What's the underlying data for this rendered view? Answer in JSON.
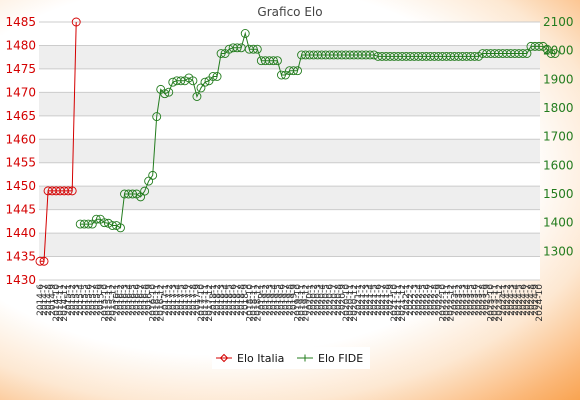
{
  "chart_data": {
    "type": "line",
    "title": "Grafico Elo",
    "left_axis": {
      "ylim": [
        1430,
        1485
      ],
      "ticks": [
        1430,
        1435,
        1440,
        1445,
        1450,
        1455,
        1460,
        1465,
        1470,
        1475,
        1480,
        1485
      ],
      "color": "#d40000"
    },
    "right_axis": {
      "ylim": [
        1200,
        2100
      ],
      "ticks": [
        1300,
        1400,
        1500,
        1600,
        1700,
        1800,
        1900,
        2000,
        2100
      ],
      "color": "#237c1e"
    },
    "grid": true,
    "legend_position": "bottom-center",
    "x_count": 125,
    "xtick_labels": [
      "2014-6",
      "2014-7",
      "2014-8",
      "2014-9",
      "2014-10",
      "2014-11",
      "2014-12",
      "2015-1",
      "2015-2",
      "2015-3",
      "2015-4",
      "2015-5",
      "2015-6",
      "2015-7",
      "2015-8",
      "2015-9",
      "2015-10",
      "2015-11",
      "2015-12",
      "2016-1",
      "2016-2",
      "2016-3",
      "2016-4",
      "2016-5",
      "2016-6",
      "2016-7",
      "2016-8",
      "2016-9",
      "2016-10",
      "2016-11",
      "2016-12",
      "2017-1",
      "2017-2",
      "2017-3",
      "2017-4",
      "2017-5",
      "2017-6",
      "2017-7",
      "2017-8",
      "2017-9",
      "2017-10",
      "2017-11",
      "2017-12",
      "2018-1",
      "2018-2",
      "2018-3",
      "2018-4",
      "2018-5",
      "2018-6",
      "2018-7",
      "2018-8",
      "2018-9",
      "2018-10",
      "2018-11",
      "2018-12",
      "2019-1",
      "2019-2",
      "2019-3",
      "2019-4",
      "2019-5",
      "2019-6",
      "2019-7",
      "2019-8",
      "2019-9",
      "2019-10",
      "2019-11",
      "2019-12",
      "2020-1",
      "2020-2",
      "2020-3",
      "2020-4",
      "2020-5",
      "2020-6",
      "2020-7",
      "2020-8",
      "2020-9",
      "2020-10",
      "2020-11",
      "2020-12",
      "2021-1",
      "2021-2",
      "2021-3",
      "2021-4",
      "2021-5",
      "2021-6",
      "2021-7",
      "2021-8",
      "2021-9",
      "2021-10",
      "2021-11",
      "2021-12",
      "2022-1",
      "2022-2",
      "2022-3",
      "2022-4",
      "2022-5",
      "2022-6",
      "2022-7",
      "2022-8",
      "2022-9",
      "2022-10",
      "2022-11",
      "2022-12",
      "2023-1",
      "2023-2",
      "2023-3",
      "2023-4",
      "2023-5",
      "2023-6",
      "2023-7",
      "2023-8",
      "2023-9",
      "2023-10",
      "2023-11",
      "2023-12",
      "2024-1",
      "2024-2",
      "2024-3",
      "2024-4",
      "2024-5",
      "2024-6",
      "2024-7",
      "2024-8",
      "2024-9",
      "2024-10"
    ],
    "series": [
      {
        "name": "Elo Italia",
        "axis": "left",
        "color": "#d40000",
        "marker": "diamond",
        "start_index": 0,
        "values": [
          1434,
          1434,
          1449,
          1449,
          1449,
          1449,
          1449,
          1449,
          1449,
          1485
        ]
      },
      {
        "name": "Elo FIDE",
        "axis": "right",
        "color": "#237c1e",
        "marker": "circle",
        "start_index": 10,
        "values": [
          1395,
          1395,
          1395,
          1395,
          1412,
          1412,
          1400,
          1398,
          1390,
          1390,
          1382,
          1500,
          1500,
          1500,
          1500,
          1490,
          1510,
          1545,
          1565,
          1770,
          1865,
          1850,
          1855,
          1890,
          1895,
          1895,
          1895,
          1905,
          1895,
          1840,
          1870,
          1890,
          1895,
          1910,
          1910,
          1990,
          1990,
          2005,
          2010,
          2010,
          2010,
          2060,
          2005,
          2005,
          2005,
          1965,
          1965,
          1965,
          1965,
          1965,
          1915,
          1915,
          1930,
          1930,
          1930,
          1985,
          1985,
          1985,
          1985,
          1985,
          1985,
          1985,
          1985,
          1985,
          1985,
          1985,
          1985,
          1985,
          1985,
          1985,
          1985,
          1985,
          1985,
          1985,
          1980,
          1980,
          1980,
          1980,
          1980,
          1980,
          1980,
          1980,
          1980,
          1980,
          1980,
          1980,
          1980,
          1980,
          1980,
          1980,
          1980,
          1980,
          1980,
          1980,
          1980,
          1980,
          1980,
          1980,
          1980,
          1980,
          1990,
          1990,
          1990,
          1990,
          1990,
          1990,
          1990,
          1990,
          1990,
          1990,
          1990,
          1990,
          2015,
          2015,
          2015,
          2015,
          2005,
          1990,
          1990
        ]
      }
    ]
  }
}
